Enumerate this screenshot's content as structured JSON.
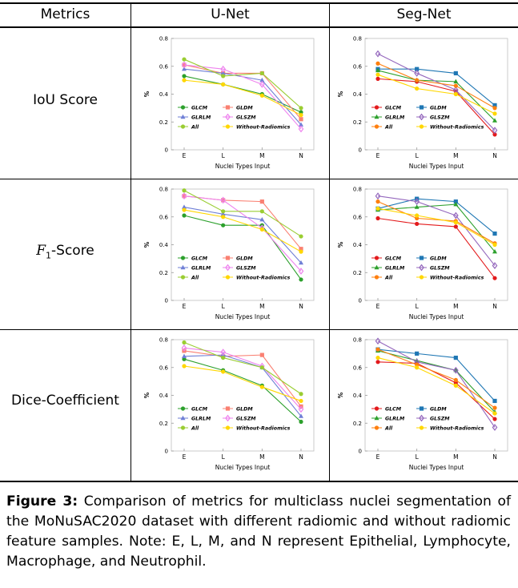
{
  "header": {
    "metrics": "Metrics",
    "unet": "U-Net",
    "segnet": "Seg-Net"
  },
  "rows": [
    {
      "label": "IoU Score"
    },
    {
      "label_prefix": "F",
      "label_sub": "1",
      "label_suffix": "-Score"
    },
    {
      "label": "Dice-Coefficient"
    }
  ],
  "caption": {
    "label": "Figure 3:",
    "text": "Comparison of metrics for multiclass nuclei segmentation of the MoNuSAC2020 dataset with different radiomic and without radiomic feature samples. Note: E, L, M, and N represent Epithelial, Lymphocyte, Macrophage, and Neutrophil."
  },
  "legend": [
    {
      "name": "GLCM",
      "color": "#2ca02c",
      "marker": "circle"
    },
    {
      "name": "GLDM",
      "color": "#ff7f0e",
      "marker": "square"
    },
    {
      "name": "GLRLM",
      "color": "#6f7fd6",
      "marker": "triangle"
    },
    {
      "name": "GLSZM",
      "color": "#ee82ee",
      "marker": "diamond"
    },
    {
      "name": "All",
      "color": "#9acd32",
      "marker": "circle"
    },
    {
      "name": "Without-Radiomics",
      "color": "#ffd700",
      "marker": "circle"
    }
  ],
  "chart_data": [
    {
      "type": "line",
      "panel": "IoU U-Net",
      "categories": [
        "E",
        "L",
        "M",
        "N"
      ],
      "xlabel": "Nuclei Types Input",
      "ylabel": "%",
      "ylim": [
        0,
        0.8
      ],
      "yticks": [
        "0",
        "0.2",
        "0.4",
        "0.6",
        "0.8"
      ],
      "series": [
        {
          "name": "GLCM",
          "color": "#2ca02c",
          "marker": "circle",
          "values": [
            0.53,
            0.47,
            0.4,
            0.27
          ]
        },
        {
          "name": "GLDM",
          "color": "#fa8072",
          "marker": "square",
          "values": [
            0.61,
            0.55,
            0.55,
            0.22
          ]
        },
        {
          "name": "GLRLM",
          "color": "#6f7fd6",
          "marker": "triangle",
          "values": [
            0.58,
            0.55,
            0.5,
            0.18
          ]
        },
        {
          "name": "GLSZM",
          "color": "#ee82ee",
          "marker": "diamond",
          "values": [
            0.61,
            0.58,
            0.47,
            0.15
          ]
        },
        {
          "name": "All",
          "color": "#9acd32",
          "marker": "circle",
          "values": [
            0.65,
            0.53,
            0.55,
            0.3
          ]
        },
        {
          "name": "Without-Radiomics",
          "color": "#ffd700",
          "marker": "circle",
          "values": [
            0.5,
            0.47,
            0.39,
            0.25
          ]
        }
      ]
    },
    {
      "type": "line",
      "panel": "IoU Seg-Net",
      "categories": [
        "E",
        "L",
        "M",
        "N"
      ],
      "xlabel": "Nuclei Types Input",
      "ylabel": "%",
      "ylim": [
        0,
        0.8
      ],
      "yticks": [
        "0",
        "0.2",
        "0.4",
        "0.6",
        "0.8"
      ],
      "series": [
        {
          "name": "GLCM",
          "color": "#e31a1c",
          "marker": "circle",
          "values": [
            0.51,
            0.49,
            0.42,
            0.11
          ]
        },
        {
          "name": "GLDM",
          "color": "#1f77b4",
          "marker": "square",
          "values": [
            0.58,
            0.58,
            0.55,
            0.32
          ]
        },
        {
          "name": "GLRLM",
          "color": "#2ca02c",
          "marker": "triangle",
          "values": [
            0.57,
            0.5,
            0.49,
            0.21
          ]
        },
        {
          "name": "GLSZM",
          "color": "#9467bd",
          "marker": "diamond",
          "values": [
            0.69,
            0.55,
            0.43,
            0.14
          ]
        },
        {
          "name": "All",
          "color": "#ff7f0e",
          "marker": "circle",
          "values": [
            0.62,
            0.5,
            0.46,
            0.3
          ]
        },
        {
          "name": "Without-Radiomics",
          "color": "#ffd700",
          "marker": "circle",
          "values": [
            0.54,
            0.44,
            0.4,
            0.26
          ]
        }
      ]
    },
    {
      "type": "line",
      "panel": "F1 U-Net",
      "categories": [
        "E",
        "L",
        "M",
        "N"
      ],
      "xlabel": "Nuclei Types Input",
      "ylabel": "%",
      "ylim": [
        0,
        0.8
      ],
      "yticks": [
        "0",
        "0.2",
        "0.4",
        "0.6",
        "0.8"
      ],
      "series": [
        {
          "name": "GLCM",
          "color": "#2ca02c",
          "marker": "circle",
          "values": [
            0.61,
            0.54,
            0.54,
            0.15
          ]
        },
        {
          "name": "GLDM",
          "color": "#fa8072",
          "marker": "square",
          "values": [
            0.75,
            0.72,
            0.71,
            0.37
          ]
        },
        {
          "name": "GLRLM",
          "color": "#6f7fd6",
          "marker": "triangle",
          "values": [
            0.67,
            0.62,
            0.58,
            0.27
          ]
        },
        {
          "name": "GLSZM",
          "color": "#ee82ee",
          "marker": "diamond",
          "values": [
            0.75,
            0.72,
            0.52,
            0.21
          ]
        },
        {
          "name": "All",
          "color": "#9acd32",
          "marker": "circle",
          "values": [
            0.79,
            0.64,
            0.64,
            0.46
          ]
        },
        {
          "name": "Without-Radiomics",
          "color": "#ffd700",
          "marker": "circle",
          "values": [
            0.65,
            0.6,
            0.51,
            0.35
          ]
        }
      ]
    },
    {
      "type": "line",
      "panel": "F1 Seg-Net",
      "categories": [
        "E",
        "L",
        "M",
        "N"
      ],
      "xlabel": "Nuclei Types Input",
      "ylabel": "%",
      "ylim": [
        0,
        0.8
      ],
      "yticks": [
        "0",
        "0.2",
        "0.4",
        "0.6",
        "0.8"
      ],
      "series": [
        {
          "name": "GLCM",
          "color": "#e31a1c",
          "marker": "circle",
          "values": [
            0.59,
            0.55,
            0.53,
            0.16
          ]
        },
        {
          "name": "GLDM",
          "color": "#1f77b4",
          "marker": "square",
          "values": [
            0.66,
            0.73,
            0.71,
            0.48
          ]
        },
        {
          "name": "GLRLM",
          "color": "#2ca02c",
          "marker": "triangle",
          "values": [
            0.65,
            0.67,
            0.69,
            0.35
          ]
        },
        {
          "name": "GLSZM",
          "color": "#9467bd",
          "marker": "diamond",
          "values": [
            0.75,
            0.71,
            0.61,
            0.25
          ]
        },
        {
          "name": "All",
          "color": "#ff7f0e",
          "marker": "circle",
          "values": [
            0.71,
            0.59,
            0.57,
            0.41
          ]
        },
        {
          "name": "Without-Radiomics",
          "color": "#ffd700",
          "marker": "circle",
          "values": [
            0.66,
            0.61,
            0.56,
            0.4
          ]
        }
      ]
    },
    {
      "type": "line",
      "panel": "Dice U-Net",
      "categories": [
        "E",
        "L",
        "M",
        "N"
      ],
      "xlabel": "Nuclei Types Input",
      "ylabel": "%",
      "ylim": [
        0,
        0.8
      ],
      "yticks": [
        "0",
        "0.2",
        "0.4",
        "0.6",
        "0.8"
      ],
      "series": [
        {
          "name": "GLCM",
          "color": "#2ca02c",
          "marker": "circle",
          "values": [
            0.66,
            0.58,
            0.47,
            0.21
          ]
        },
        {
          "name": "GLDM",
          "color": "#fa8072",
          "marker": "square",
          "values": [
            0.72,
            0.68,
            0.69,
            0.32
          ]
        },
        {
          "name": "GLRLM",
          "color": "#6f7fd6",
          "marker": "triangle",
          "values": [
            0.68,
            0.69,
            0.6,
            0.25
          ]
        },
        {
          "name": "GLSZM",
          "color": "#ee82ee",
          "marker": "diamond",
          "values": [
            0.74,
            0.71,
            0.61,
            0.3
          ]
        },
        {
          "name": "All",
          "color": "#9acd32",
          "marker": "circle",
          "values": [
            0.78,
            0.67,
            0.6,
            0.41
          ]
        },
        {
          "name": "Without-Radiomics",
          "color": "#ffd700",
          "marker": "circle",
          "values": [
            0.61,
            0.57,
            0.46,
            0.36
          ]
        }
      ]
    },
    {
      "type": "line",
      "panel": "Dice Seg-Net",
      "categories": [
        "E",
        "L",
        "M",
        "N"
      ],
      "xlabel": "Nuclei Types Input",
      "ylabel": "%",
      "ylim": [
        0,
        0.8
      ],
      "yticks": [
        "0",
        "0.2",
        "0.4",
        "0.6",
        "0.8"
      ],
      "series": [
        {
          "name": "GLCM",
          "color": "#e31a1c",
          "marker": "circle",
          "values": [
            0.64,
            0.63,
            0.49,
            0.23
          ]
        },
        {
          "name": "GLDM",
          "color": "#1f77b4",
          "marker": "square",
          "values": [
            0.73,
            0.7,
            0.67,
            0.36
          ]
        },
        {
          "name": "GLRLM",
          "color": "#2ca02c",
          "marker": "triangle",
          "values": [
            0.72,
            0.65,
            0.58,
            0.28
          ]
        },
        {
          "name": "GLSZM",
          "color": "#9467bd",
          "marker": "diamond",
          "values": [
            0.79,
            0.64,
            0.58,
            0.17
          ]
        },
        {
          "name": "All",
          "color": "#ff7f0e",
          "marker": "circle",
          "values": [
            0.73,
            0.62,
            0.51,
            0.31
          ]
        },
        {
          "name": "Without-Radiomics",
          "color": "#ffd700",
          "marker": "circle",
          "values": [
            0.67,
            0.6,
            0.47,
            0.27
          ]
        }
      ]
    }
  ]
}
